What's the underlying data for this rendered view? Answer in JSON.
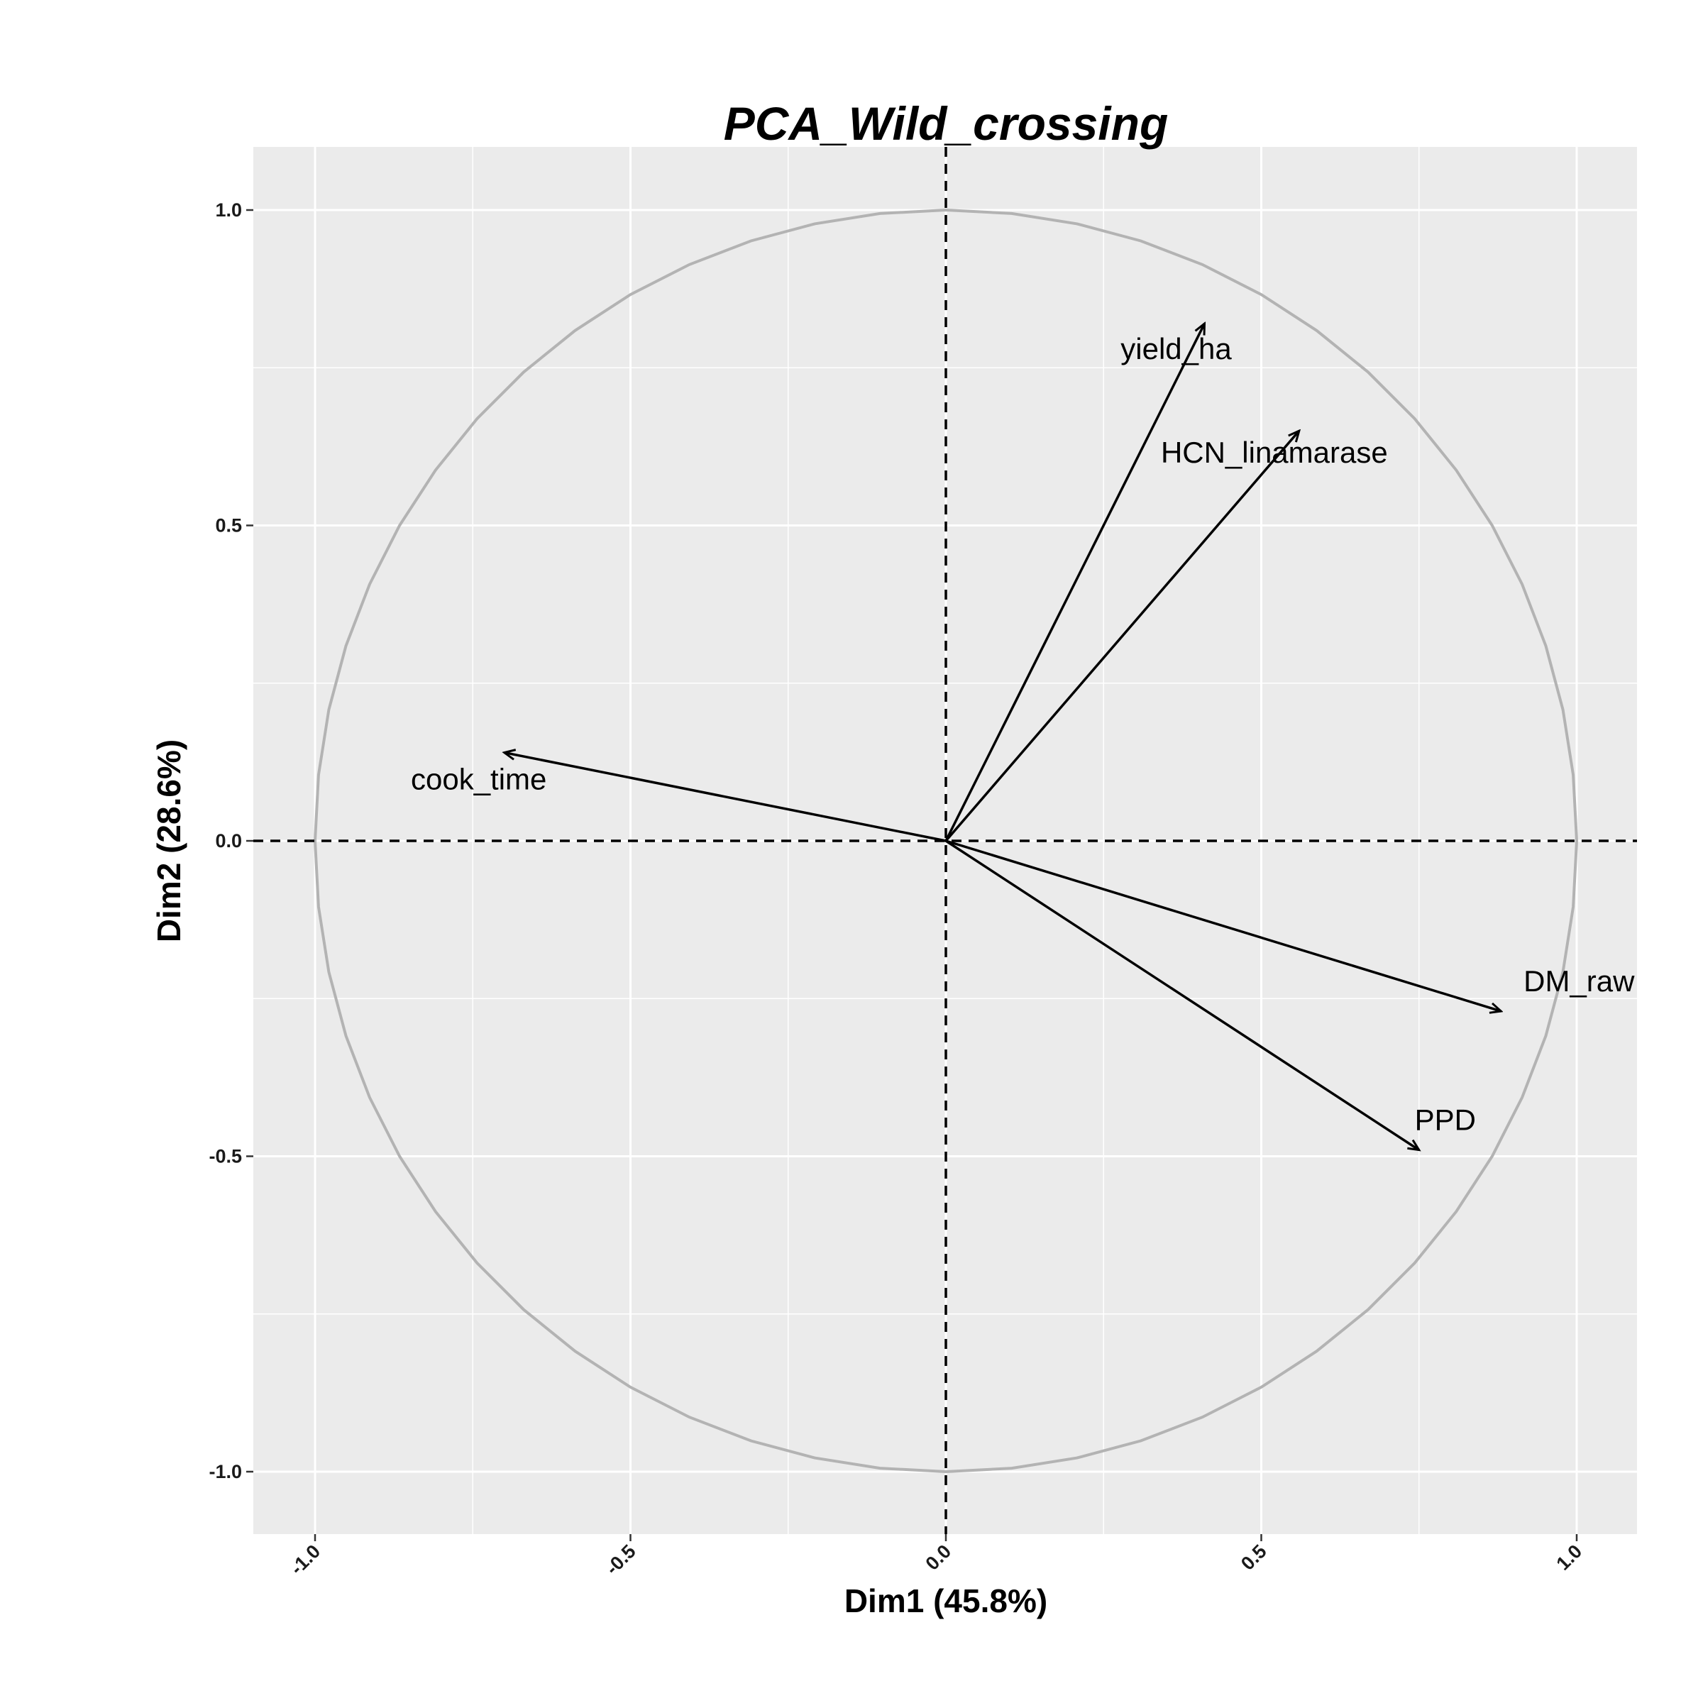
{
  "chart_data": {
    "type": "scatter",
    "subtype": "pca-correlation-circle",
    "title": "PCA_Wild_crossing",
    "xlabel": "Dim1 (45.8%)",
    "ylabel": "Dim2 (28.6%)",
    "xlim": [
      -1.1,
      1.1
    ],
    "ylim": [
      -1.1,
      1.1
    ],
    "x_ticks": [
      {
        "value": -1.0,
        "label": "-1.0"
      },
      {
        "value": -0.5,
        "label": "-0.5"
      },
      {
        "value": 0.0,
        "label": "0.0"
      },
      {
        "value": 0.5,
        "label": "0.5"
      },
      {
        "value": 1.0,
        "label": "1.0"
      }
    ],
    "y_ticks": [
      {
        "value": -1.0,
        "label": "-1.0"
      },
      {
        "value": -0.5,
        "label": "-0.5"
      },
      {
        "value": 0.0,
        "label": "0.0"
      },
      {
        "value": 0.5,
        "label": "0.5"
      },
      {
        "value": 1.0,
        "label": "1.0"
      }
    ],
    "grid": true,
    "unit_circle": true,
    "series": [
      {
        "name": "yield_ha",
        "x": 0.41,
        "y": 0.82
      },
      {
        "name": "HCN_linamarase",
        "x": 0.56,
        "y": 0.65
      },
      {
        "name": "cook_time",
        "x": -0.7,
        "y": 0.14
      },
      {
        "name": "DM_raw",
        "x": 0.88,
        "y": -0.27
      },
      {
        "name": "PPD",
        "x": 0.75,
        "y": -0.49
      }
    ],
    "colors": {
      "panel_background": "#ebebeb",
      "grid_line": "#ffffff",
      "circle": "#b3b3b3",
      "arrow": "#000000"
    }
  }
}
